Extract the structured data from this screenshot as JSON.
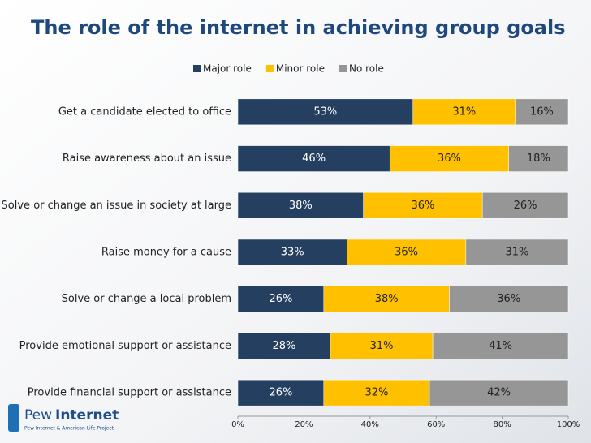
{
  "chart_data": {
    "type": "stacked-bar-horizontal",
    "title": "The role of the internet in achieving group goals",
    "categories": [
      "Get a candidate elected to office",
      "Raise awareness about an issue",
      "Solve or change an issue in society at large",
      "Raise money for a cause",
      "Solve or change a local problem",
      "Provide emotional support or assistance",
      "Provide financial support or assistance"
    ],
    "series": [
      {
        "name": "Major role",
        "color": "#243f60",
        "values": [
          53,
          46,
          38,
          33,
          26,
          28,
          26
        ],
        "value_labels": [
          "53%",
          "46%",
          "38%",
          "33%",
          "26%",
          "28%",
          "26%"
        ]
      },
      {
        "name": "Minor role",
        "color": "#ffc000",
        "values": [
          31,
          36,
          36,
          36,
          38,
          31,
          32
        ],
        "value_labels": [
          "31%",
          "36%",
          "36%",
          "36%",
          "38%",
          "31%",
          "32%"
        ]
      },
      {
        "name": "No role",
        "color": "#969696",
        "values": [
          16,
          18,
          26,
          31,
          36,
          41,
          42
        ],
        "value_labels": [
          "16%",
          "18%",
          "26%",
          "31%",
          "36%",
          "41%",
          "42%"
        ]
      }
    ],
    "xlim": [
      0,
      100
    ],
    "xticks": [
      {
        "value": 0,
        "label": "0%"
      },
      {
        "value": 20,
        "label": "20%"
      },
      {
        "value": 40,
        "label": "40%"
      },
      {
        "value": 60,
        "label": "60%"
      },
      {
        "value": 80,
        "label": "80%"
      },
      {
        "value": 100,
        "label": "100%"
      }
    ],
    "legend": "top"
  },
  "logo": {
    "name_first": "Pew",
    "name_second": "Internet",
    "tagline": "Pew Internet & American Life Project"
  }
}
